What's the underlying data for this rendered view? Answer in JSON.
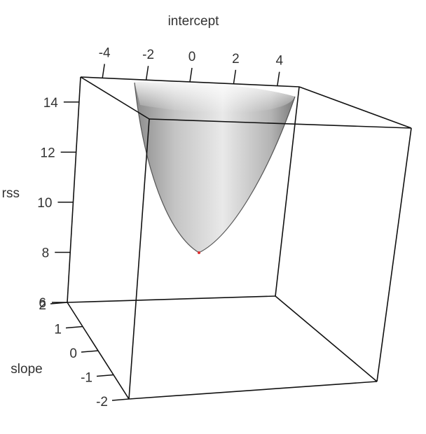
{
  "chart_data": {
    "type": "surface3d",
    "title": "",
    "axes": {
      "x": {
        "label": "intercept",
        "ticks": [
          "-4",
          "-2",
          "0",
          "2",
          "4"
        ],
        "tick_values": [
          -4,
          -2,
          0,
          2,
          4
        ],
        "range": [
          -5,
          5
        ]
      },
      "y": {
        "label": "slope",
        "ticks": [
          "-2",
          "-1",
          "0",
          "1",
          "2"
        ],
        "tick_values": [
          -2,
          -1,
          0,
          1,
          2
        ],
        "range": [
          -2,
          2
        ]
      },
      "z": {
        "label": "rss",
        "ticks": [
          "6",
          "8",
          "10",
          "12",
          "14"
        ],
        "tick_values": [
          6,
          8,
          10,
          12,
          14
        ],
        "range": [
          6,
          15
        ]
      }
    },
    "surface": {
      "shape": "paraboloid",
      "minimum": {
        "intercept": 0,
        "slope": 0,
        "rss": 8.1
      },
      "color": "#bdbdbd",
      "minimum_marker_color": "#e03030"
    },
    "box": true,
    "grid": false
  }
}
